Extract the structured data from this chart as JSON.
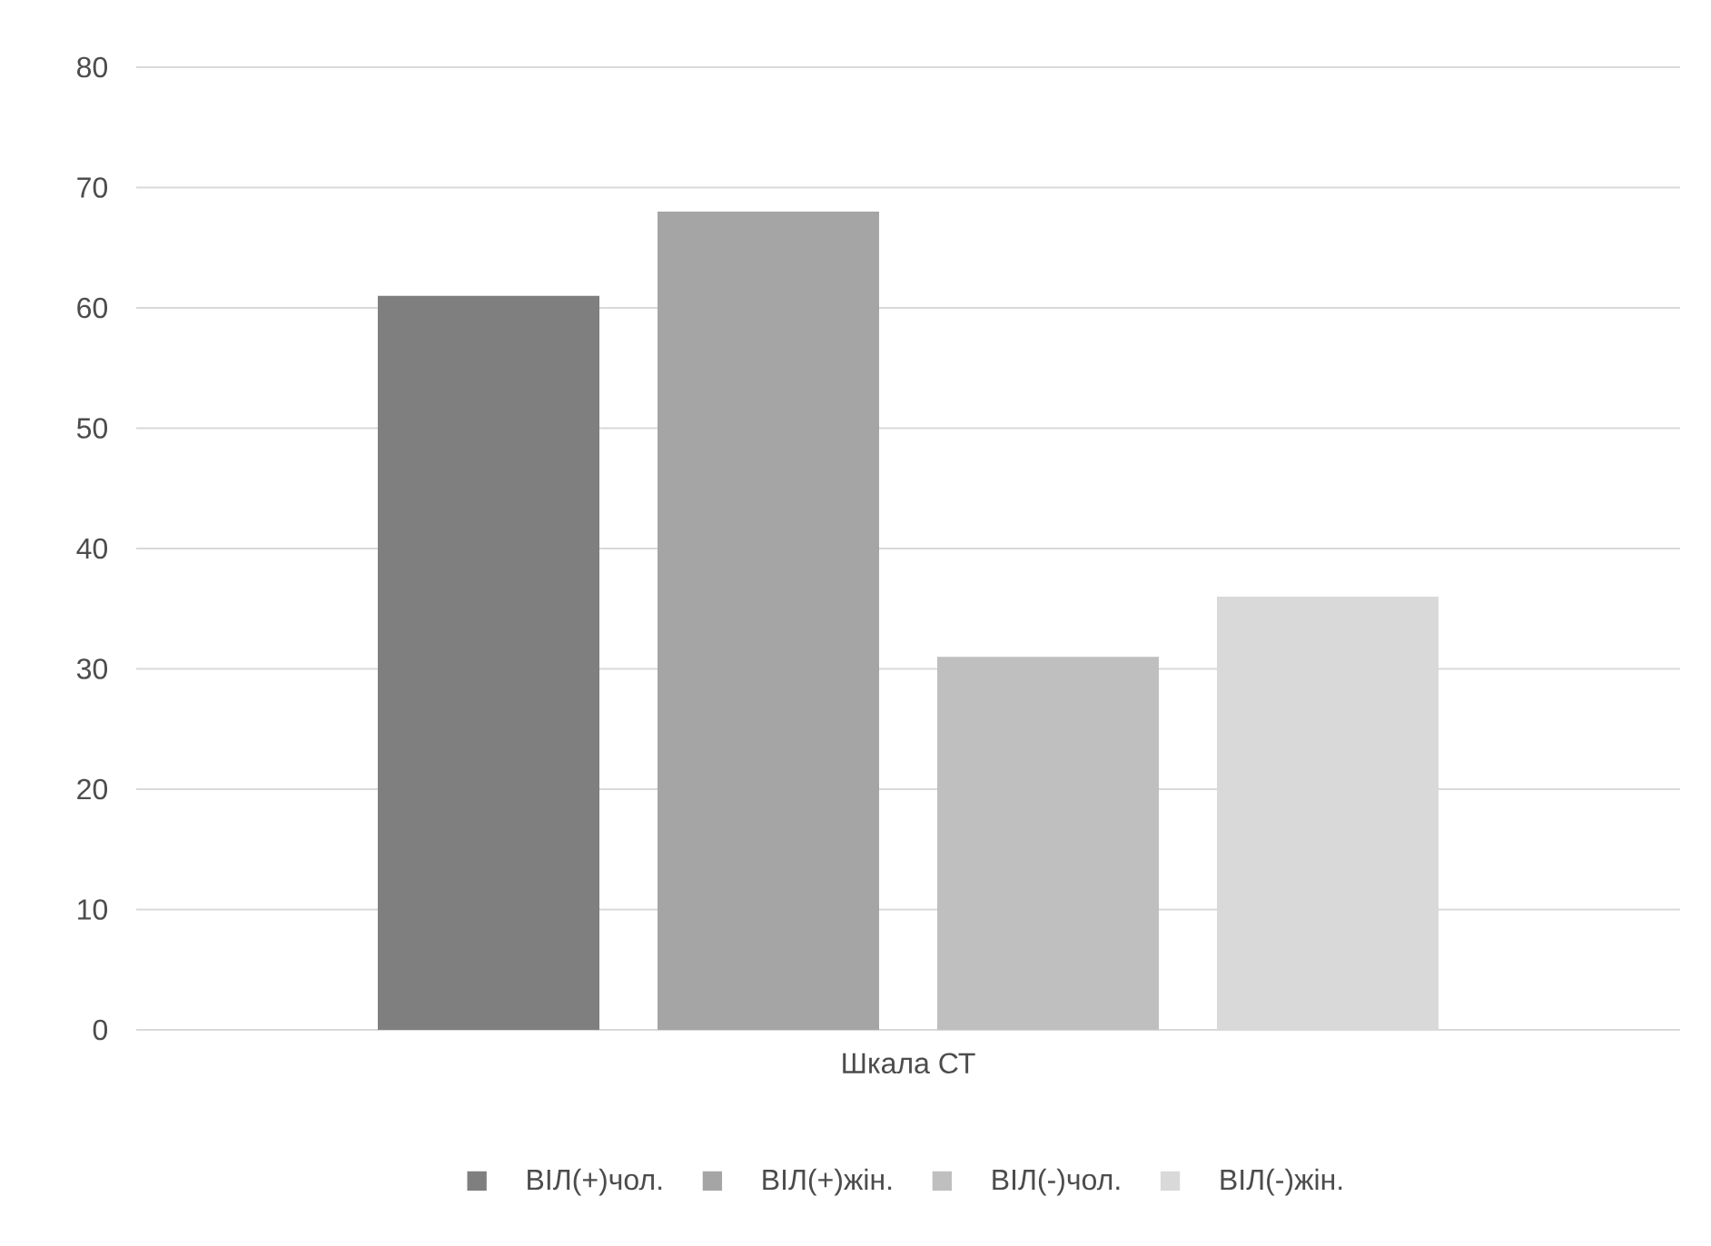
{
  "chart_data": {
    "type": "bar",
    "categories": [
      "Шкала СТ"
    ],
    "series": [
      {
        "name": "ВІЛ(+)чол.",
        "color": "#7f7f7f",
        "values": [
          61
        ]
      },
      {
        "name": "ВІЛ(+)жін.",
        "color": "#a5a5a5",
        "values": [
          68
        ]
      },
      {
        "name": "ВІЛ(-)чол.",
        "color": "#bfbfbf",
        "values": [
          31
        ]
      },
      {
        "name": "ВІЛ(-)жін.",
        "color": "#d9d9d9",
        "values": [
          36
        ]
      }
    ],
    "ylim": [
      0,
      80
    ],
    "yticks": [
      0,
      10,
      20,
      30,
      40,
      50,
      60,
      70,
      80
    ],
    "grid": "y",
    "legend": "bottom"
  }
}
